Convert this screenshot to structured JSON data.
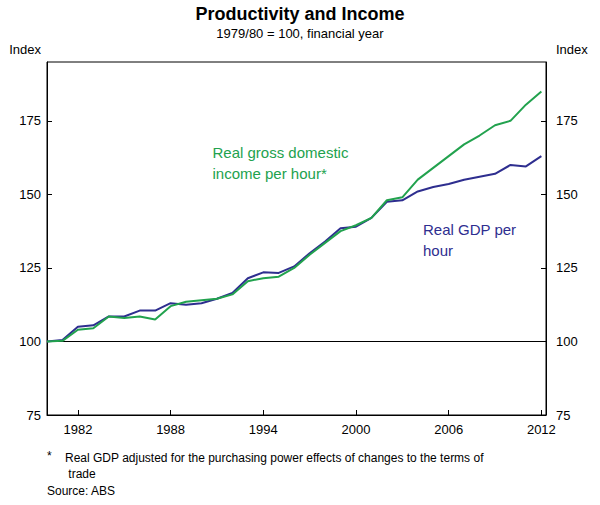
{
  "chart_data": {
    "type": "line",
    "title": "Productivity and Income",
    "subtitle": "1979/80 = 100, financial year",
    "ylabel": "Index",
    "y2label": "Index",
    "x": [
      1980,
      1981,
      1982,
      1983,
      1984,
      1985,
      1986,
      1987,
      1988,
      1989,
      1990,
      1991,
      1992,
      1993,
      1994,
      1995,
      1996,
      1997,
      1998,
      1999,
      2000,
      2001,
      2002,
      2003,
      2004,
      2005,
      2006,
      2007,
      2008,
      2009,
      2010,
      2011,
      2012
    ],
    "series": [
      {
        "name": "Real gross domestic income per hour*",
        "color": "#22a24e",
        "values": [
          100,
          100.2,
          104,
          104.5,
          108.5,
          108,
          108.5,
          107.5,
          112,
          113.5,
          114,
          114.5,
          116,
          120.5,
          121.5,
          122,
          125,
          129.5,
          133.5,
          137.5,
          139.5,
          142,
          148,
          149,
          155,
          159,
          163,
          167,
          170,
          173.5,
          175,
          180.5,
          185
        ]
      },
      {
        "name": "Real GDP per hour",
        "color": "#2e2e8f",
        "values": [
          100,
          100.5,
          105,
          105.5,
          108.5,
          108.5,
          110.5,
          110.5,
          113,
          112.5,
          113,
          114.5,
          116.5,
          121.5,
          123.5,
          123.3,
          125.5,
          130,
          134,
          138.5,
          139,
          142,
          147.5,
          148,
          151,
          152.5,
          153.5,
          155,
          156,
          157,
          160,
          159.5,
          163
        ]
      }
    ],
    "xlim": [
      1980,
      2012.3
    ],
    "xticks": [
      1982,
      1988,
      1994,
      2000,
      2006,
      2012
    ],
    "ylim": [
      75,
      195
    ],
    "yticks": [
      75,
      100,
      125,
      150,
      175
    ],
    "y2lim": [
      75,
      195
    ],
    "y2ticks": [
      75,
      100,
      125,
      150,
      175
    ],
    "baseline": 100,
    "grid": false,
    "footnote": {
      "marker": "*",
      "text": "Real GDP adjusted for the purchasing power effects of changes to the terms of trade"
    },
    "source": "Source: ABS"
  }
}
